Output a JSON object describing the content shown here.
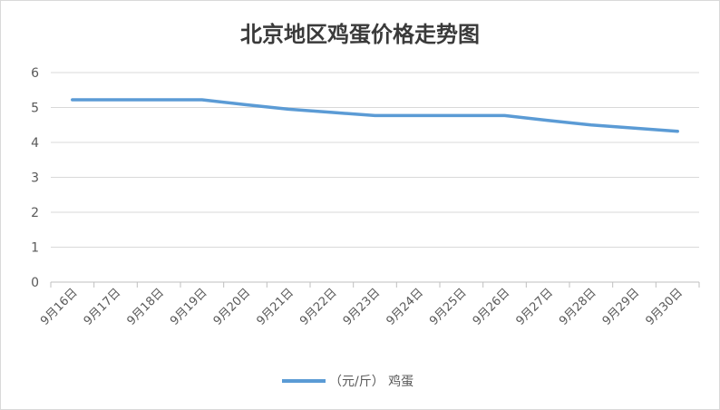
{
  "chart_data": {
    "type": "line",
    "title": "北京地区鸡蛋价格走势图",
    "categories": [
      "9月16日",
      "9月17日",
      "9月18日",
      "9月19日",
      "9月20日",
      "9月21日",
      "9月22日",
      "9月23日",
      "9月24日",
      "9月25日",
      "9月26日",
      "9月27日",
      "9月28日",
      "9月29日",
      "9月30日"
    ],
    "series": [
      {
        "name": "（元/斤） 鸡蛋",
        "values": [
          5.22,
          5.22,
          5.22,
          5.22,
          5.08,
          4.95,
          4.86,
          4.77,
          4.77,
          4.77,
          4.77,
          4.63,
          4.5,
          4.41,
          4.32
        ],
        "color": "#5b9bd5"
      }
    ],
    "yticks": [
      "0",
      "1",
      "2",
      "3",
      "4",
      "5",
      "6"
    ],
    "ylim": [
      0,
      6
    ],
    "grid": true,
    "legend_position": "bottom"
  }
}
